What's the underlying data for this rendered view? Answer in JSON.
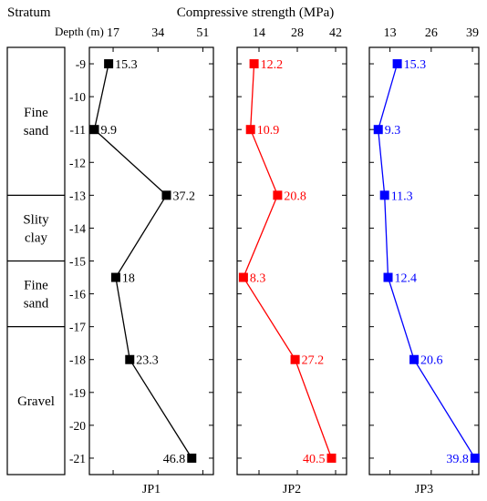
{
  "figure": {
    "stratum_header": "Stratum",
    "title": "Compressive strength (MPa)",
    "depth_label": "Depth (m)"
  },
  "chart_data": {
    "type": "line",
    "title": "Compressive strength (MPa)",
    "ylabel": "Depth (m)",
    "ylim": [
      -21.5,
      -8.5
    ],
    "yticks": [
      -9,
      -10,
      -11,
      -12,
      -13,
      -14,
      -15,
      -16,
      -17,
      -18,
      -19,
      -20,
      -21
    ],
    "grid": false,
    "strata": [
      {
        "name": "Fine sand",
        "lines": [
          "Fine",
          "sand"
        ],
        "depth_range": [
          -8.5,
          -13
        ]
      },
      {
        "name": "Slity clay",
        "lines": [
          "Slity",
          "clay"
        ],
        "depth_range": [
          -13,
          -15
        ]
      },
      {
        "name": "Fine sand",
        "lines": [
          "Fine",
          "sand"
        ],
        "depth_range": [
          -15,
          -17
        ]
      },
      {
        "name": "Gravel",
        "lines": [
          "Gravel"
        ],
        "depth_range": [
          -17,
          -21.5
        ]
      }
    ],
    "panels": [
      {
        "name": "JP1",
        "color": "#000000",
        "xlim": [
          8,
          55
        ],
        "xticks": [
          17,
          34,
          51
        ],
        "points": [
          {
            "depth": -9,
            "value": 15.3,
            "label": "15.3"
          },
          {
            "depth": -11,
            "value": 9.9,
            "label": "9.9"
          },
          {
            "depth": -13,
            "value": 37.2,
            "label": "37.2"
          },
          {
            "depth": -15.5,
            "value": 18,
            "label": "18"
          },
          {
            "depth": -18,
            "value": 23.3,
            "label": "23.3"
          },
          {
            "depth": -21,
            "value": 46.8,
            "label": "46.8"
          }
        ]
      },
      {
        "name": "JP2",
        "color": "#ff0000",
        "xlim": [
          6,
          46
        ],
        "xticks": [
          14,
          28,
          42
        ],
        "points": [
          {
            "depth": -9,
            "value": 12.2,
            "label": "12.2"
          },
          {
            "depth": -11,
            "value": 10.9,
            "label": "10.9"
          },
          {
            "depth": -13,
            "value": 20.8,
            "label": "20.8"
          },
          {
            "depth": -15.5,
            "value": 8.3,
            "label": "8.3"
          },
          {
            "depth": -18,
            "value": 27.2,
            "label": "27.2"
          },
          {
            "depth": -21,
            "value": 40.5,
            "label": "40.5"
          }
        ]
      },
      {
        "name": "JP3",
        "color": "#0000ff",
        "xlim": [
          6.5,
          41
        ],
        "xticks": [
          13,
          26,
          39
        ],
        "points": [
          {
            "depth": -9,
            "value": 15.3,
            "label": "15.3"
          },
          {
            "depth": -11,
            "value": 9.3,
            "label": "9.3"
          },
          {
            "depth": -13,
            "value": 11.3,
            "label": "11.3"
          },
          {
            "depth": -15.5,
            "value": 12.4,
            "label": "12.4"
          },
          {
            "depth": -18,
            "value": 20.6,
            "label": "20.6"
          },
          {
            "depth": -21,
            "value": 39.8,
            "label": "39.8"
          }
        ]
      }
    ]
  }
}
